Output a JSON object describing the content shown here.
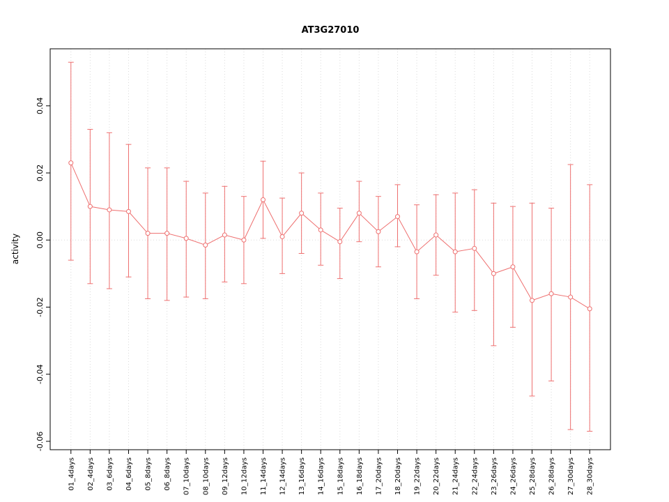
{
  "chart_data": {
    "type": "line",
    "title": "AT3G27010",
    "xlabel": "",
    "ylabel": "activity",
    "ylim": [
      -0.0625,
      0.057
    ],
    "yticks": [
      -0.06,
      -0.04,
      -0.02,
      0.0,
      0.02,
      0.04
    ],
    "grid": true,
    "legend_position": "none",
    "error_bars": true,
    "categories": [
      "01_4days",
      "02_4days",
      "03_6days",
      "04_6days",
      "05_8days",
      "06_8days",
      "07_10days",
      "08_10days",
      "09_12days",
      "10_12days",
      "11_14days",
      "12_14days",
      "13_16days",
      "14_16days",
      "15_18days",
      "16_18days",
      "17_20days",
      "18_20days",
      "19_22days",
      "20_22days",
      "21_24days",
      "22_24days",
      "23_26days",
      "24_26days",
      "25_28days",
      "26_28days",
      "27_30days",
      "28_30days"
    ],
    "series": [
      {
        "name": "AT3G27010 activity",
        "values": [
          0.023,
          0.01,
          0.009,
          0.0085,
          0.002,
          0.002,
          0.0005,
          -0.0015,
          0.0015,
          0.0,
          0.012,
          0.001,
          0.008,
          0.003,
          -0.0005,
          0.008,
          0.0025,
          0.007,
          -0.0035,
          0.0015,
          -0.0035,
          -0.0025,
          -0.01,
          -0.008,
          -0.018,
          -0.016,
          -0.017,
          -0.0205
        ],
        "upper": [
          0.053,
          0.033,
          0.032,
          0.0285,
          0.0215,
          0.0215,
          0.0175,
          0.014,
          0.016,
          0.013,
          0.0235,
          0.0125,
          0.02,
          0.014,
          0.0095,
          0.0175,
          0.013,
          0.0165,
          0.0105,
          0.0135,
          0.014,
          0.015,
          0.011,
          0.01,
          0.011,
          0.0095,
          0.0225,
          0.0165
        ],
        "lower": [
          -0.006,
          -0.013,
          -0.0145,
          -0.011,
          -0.0175,
          -0.018,
          -0.017,
          -0.0175,
          -0.0125,
          -0.013,
          0.0005,
          -0.01,
          -0.004,
          -0.0075,
          -0.0115,
          -0.0005,
          -0.008,
          -0.002,
          -0.0175,
          -0.0105,
          -0.0215,
          -0.021,
          -0.0315,
          -0.026,
          -0.0465,
          -0.042,
          -0.0565,
          -0.057
        ]
      }
    ],
    "colors": {
      "series": "#ee6f6f",
      "grid": "#d9d9d9",
      "axis": "#000000",
      "background": "#ffffff"
    }
  }
}
